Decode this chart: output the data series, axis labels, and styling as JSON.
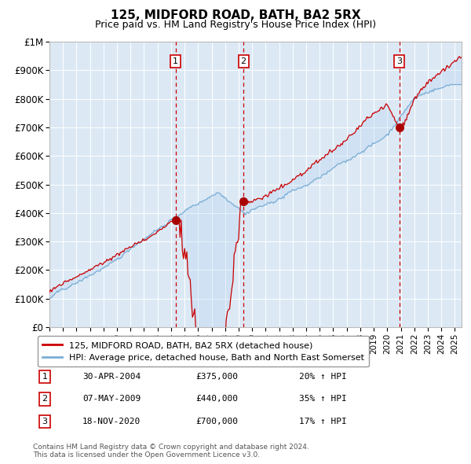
{
  "title": "125, MIDFORD ROAD, BATH, BA2 5RX",
  "subtitle": "Price paid vs. HM Land Registry's House Price Index (HPI)",
  "background_color": "#ffffff",
  "plot_bg_color": "#dce9f5",
  "grid_color": "#ffffff",
  "red_line_color": "#cc0000",
  "blue_line_color": "#7aadd4",
  "sale_marker_color": "#aa0000",
  "vline_color": "#cc0000",
  "legend_line1": "125, MIDFORD ROAD, BATH, BA2 5RX (detached house)",
  "legend_line2": "HPI: Average price, detached house, Bath and North East Somerset",
  "sales": [
    {
      "num": 1,
      "date_x": 2004.33,
      "price": 375000,
      "label": "30-APR-2004",
      "pct": "20% ↑ HPI"
    },
    {
      "num": 2,
      "date_x": 2009.36,
      "price": 440000,
      "label": "07-MAY-2009",
      "pct": "35% ↑ HPI"
    },
    {
      "num": 3,
      "date_x": 2020.89,
      "price": 700000,
      "label": "18-NOV-2020",
      "pct": "17% ↑ HPI"
    }
  ],
  "footer": "Contains HM Land Registry data © Crown copyright and database right 2024.\nThis data is licensed under the Open Government Licence v3.0.",
  "xmin": 1995.0,
  "xmax": 2025.5,
  "ymin": 0,
  "ymax": 1000000,
  "yticks": [
    0,
    100000,
    200000,
    300000,
    400000,
    500000,
    600000,
    700000,
    800000,
    900000,
    1000000
  ],
  "ytick_labels": [
    "£0",
    "£100K",
    "£200K",
    "£300K",
    "£400K",
    "£500K",
    "£600K",
    "£700K",
    "£800K",
    "£900K",
    "£1M"
  ]
}
